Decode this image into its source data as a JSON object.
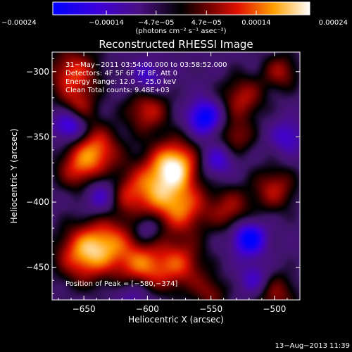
{
  "chart_data": {
    "type": "heatmap",
    "title": "Reconstructed RHESSI Image",
    "xlabel": "Heliocentric X (arcsec)",
    "ylabel": "Heliocentric Y (arcsec)",
    "xlim": [
      -675,
      -480
    ],
    "ylim": [
      -475,
      -285
    ],
    "x_ticks": [
      -650,
      -600,
      -550,
      -500
    ],
    "x_tick_labels": [
      "−650",
      "−600",
      "−550",
      "−500"
    ],
    "y_ticks": [
      -300,
      -350,
      -400,
      -450
    ],
    "y_tick_labels": [
      "−300",
      "−350",
      "−400",
      "−450"
    ],
    "colorbar": {
      "min": -0.00024,
      "max": 0.00024,
      "ticks": [
        -0.00024,
        -0.00014,
        -4.7e-05,
        4.7e-05,
        0.00014,
        0.00024
      ],
      "tick_labels": [
        "−0.00024",
        "−0.00014",
        "−4.7e−05",
        "4.7e−05",
        "0.00014",
        "0.00024"
      ],
      "units_label": "(photons cm⁻² s⁻¹ asec⁻²)",
      "colors": [
        "#0000ff",
        "#000000",
        "#ff3300",
        "#ffffff"
      ]
    },
    "annotations": [
      "31−May−2011 03:54:00.000 to 03:58:52.000",
      "Detectors: 4F 5F 6F 7F 8F, Att 0",
      "Energy Range: 12.0 − 25.0 keV",
      "Clean    Total counts: 9.48E+03"
    ],
    "peak_label": "Position of Peak = [−580,−374]",
    "peak": [
      -580,
      -374
    ],
    "blobs": [
      {
        "x": -578,
        "y": -371,
        "v": 1.0,
        "s": 13
      },
      {
        "x": -597,
        "y": -390,
        "v": 0.75,
        "s": 16
      },
      {
        "x": -572,
        "y": -405,
        "v": 0.7,
        "s": 14
      },
      {
        "x": -640,
        "y": -360,
        "v": 0.75,
        "s": 13
      },
      {
        "x": -655,
        "y": -375,
        "v": 0.55,
        "s": 12
      },
      {
        "x": -650,
        "y": -440,
        "v": 0.85,
        "s": 15
      },
      {
        "x": -630,
        "y": -430,
        "v": 0.6,
        "s": 14
      },
      {
        "x": -605,
        "y": -450,
        "v": 0.75,
        "s": 14
      },
      {
        "x": -575,
        "y": -448,
        "v": 0.65,
        "s": 14
      },
      {
        "x": -600,
        "y": -330,
        "v": 0.6,
        "s": 12
      },
      {
        "x": -658,
        "y": -302,
        "v": 0.7,
        "s": 14
      },
      {
        "x": -655,
        "y": -330,
        "v": 0.55,
        "s": 10
      },
      {
        "x": -525,
        "y": -320,
        "v": 0.55,
        "s": 12
      },
      {
        "x": -530,
        "y": -350,
        "v": 0.45,
        "s": 10
      },
      {
        "x": -535,
        "y": -405,
        "v": 0.5,
        "s": 12
      },
      {
        "x": -500,
        "y": -390,
        "v": 0.55,
        "s": 12
      },
      {
        "x": -495,
        "y": -300,
        "v": 0.5,
        "s": 10
      },
      {
        "x": -500,
        "y": -470,
        "v": 0.5,
        "s": 12
      },
      {
        "x": -550,
        "y": -470,
        "v": 0.4,
        "s": 10
      },
      {
        "x": -620,
        "y": -395,
        "v": 0.35,
        "s": 10
      },
      {
        "x": -660,
        "y": -340,
        "v": -0.8,
        "s": 9
      },
      {
        "x": -555,
        "y": -335,
        "v": -0.8,
        "s": 9
      },
      {
        "x": -520,
        "y": -428,
        "v": -0.85,
        "s": 9
      },
      {
        "x": -635,
        "y": -395,
        "v": -0.5,
        "s": 10
      },
      {
        "x": -545,
        "y": -368,
        "v": -0.45,
        "s": 9
      },
      {
        "x": -610,
        "y": -470,
        "v": -0.4,
        "s": 10
      },
      {
        "x": -600,
        "y": -305,
        "v": -0.4,
        "s": 9
      },
      {
        "x": -515,
        "y": -460,
        "v": -0.45,
        "s": 9
      },
      {
        "x": -600,
        "y": -420,
        "v": -0.35,
        "s": 8
      },
      {
        "x": -490,
        "y": -350,
        "v": -0.4,
        "s": 9
      }
    ]
  },
  "footer": {
    "timestamp": "13−Aug−2013 11:39"
  }
}
